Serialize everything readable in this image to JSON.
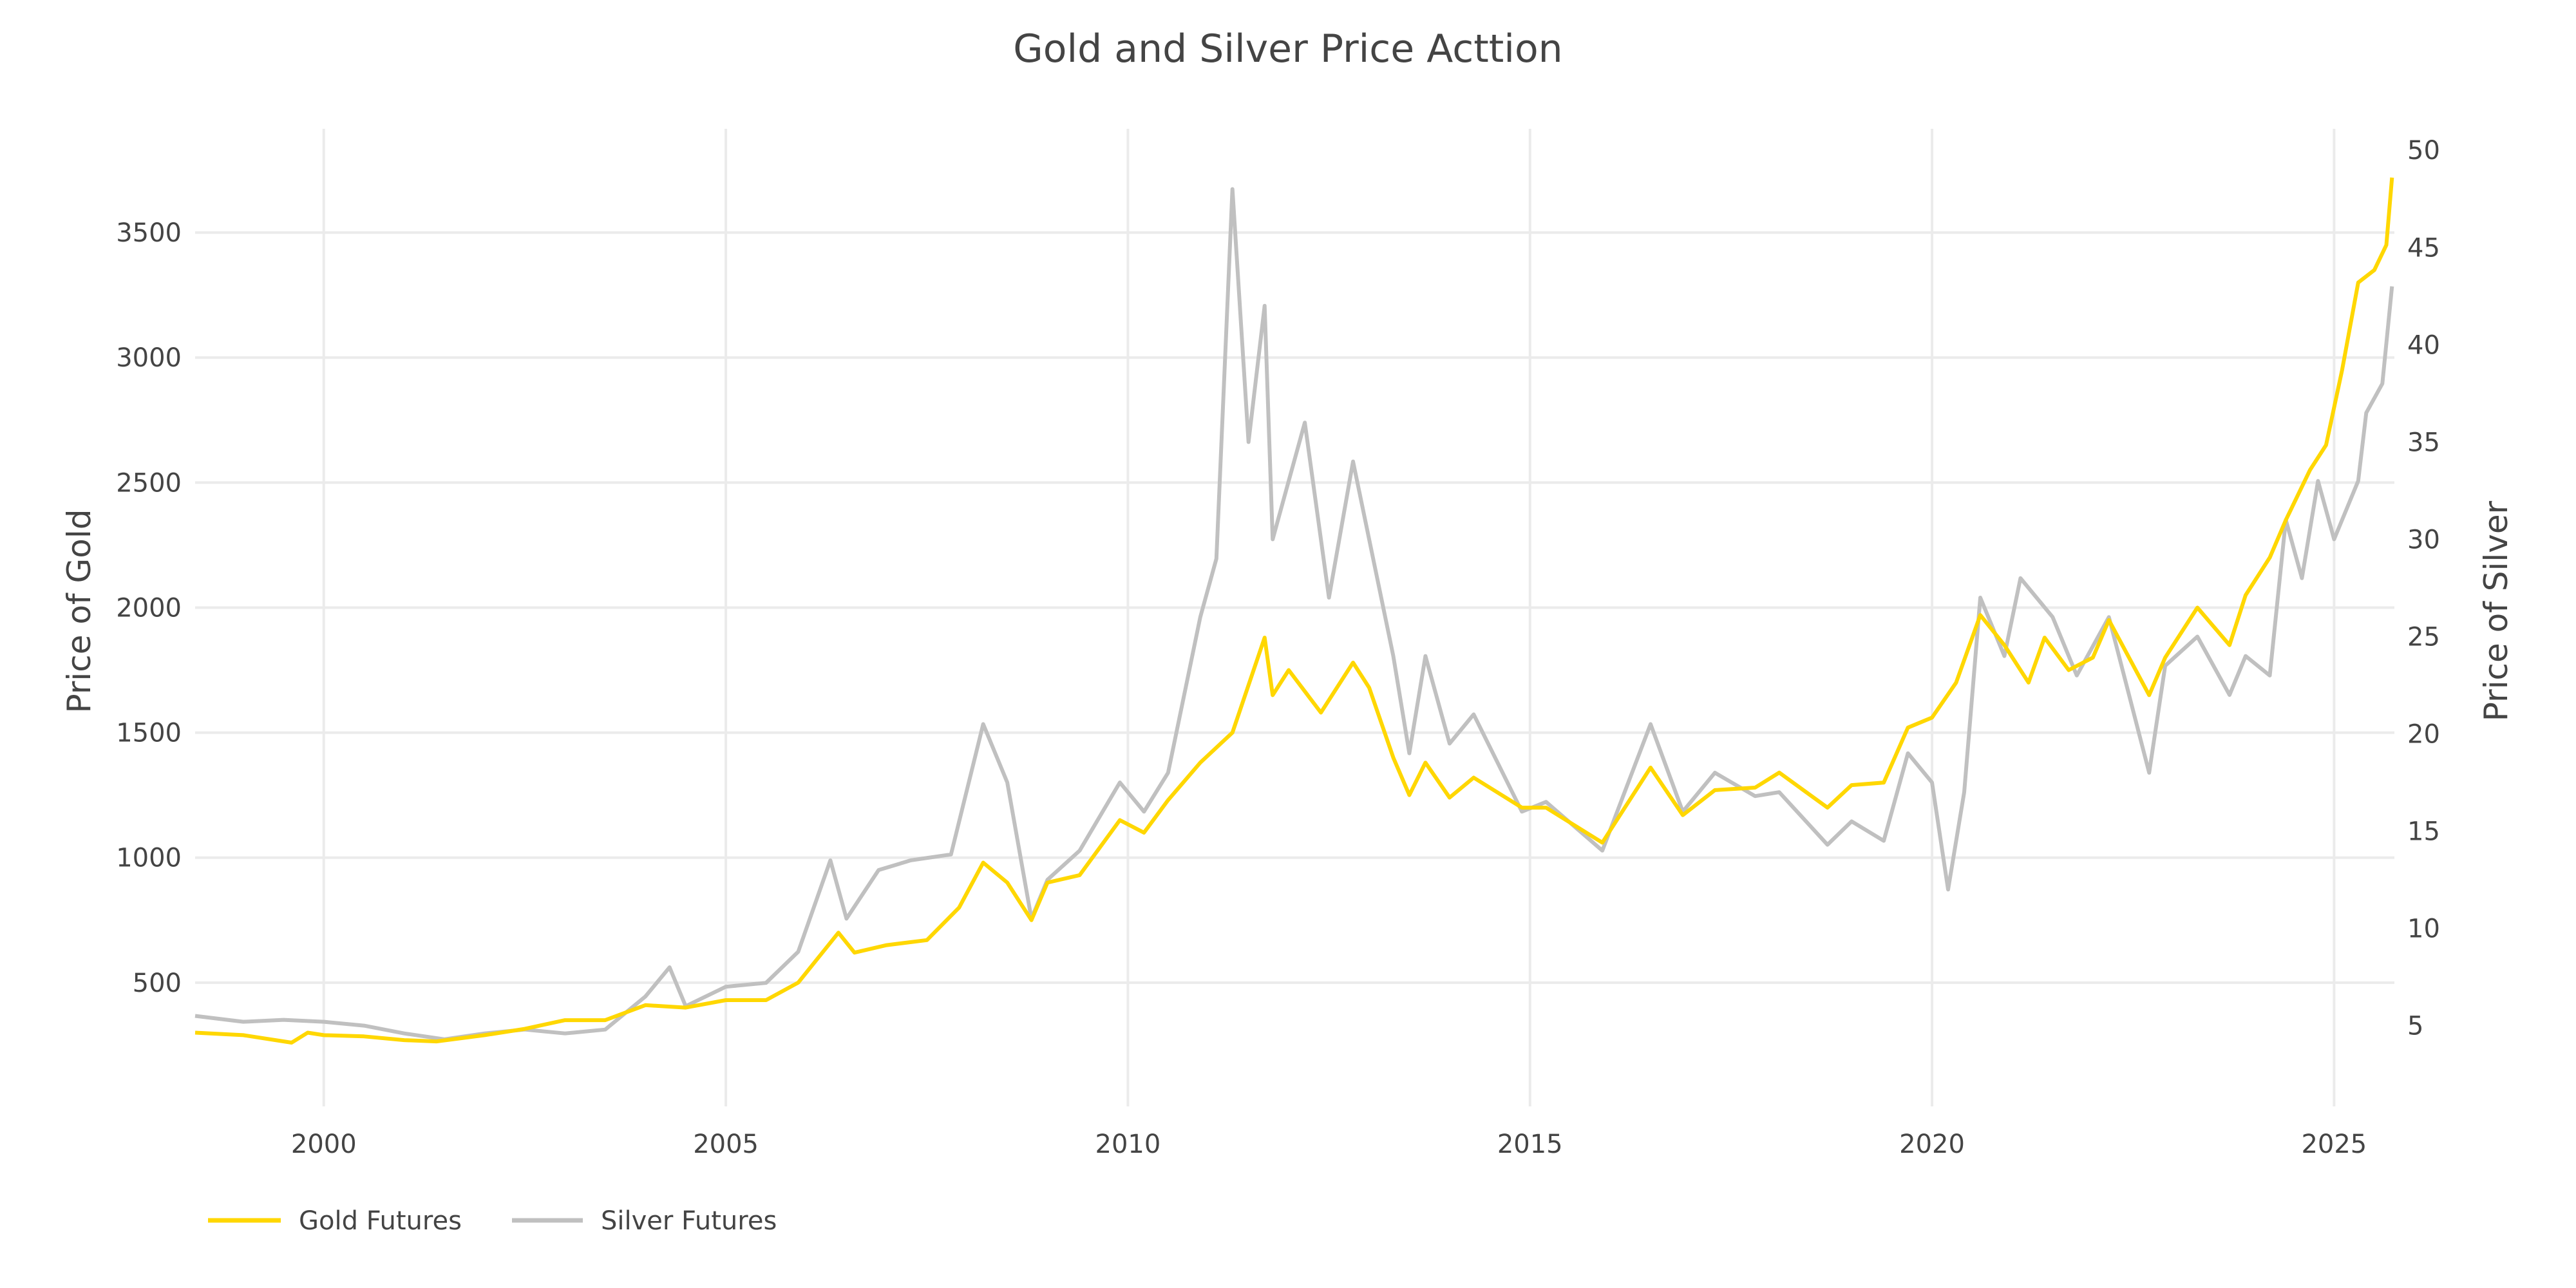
{
  "chart_data": {
    "type": "line",
    "title": "Gold and Silver Price Acttion",
    "xlabel": "",
    "ylabel": "Price of Gold",
    "y2label": "Price of Silver",
    "xlim": [
      1998.4,
      2025.75
    ],
    "ylim": [
      5,
      3915
    ],
    "y2lim": [
      0.85,
      51.1
    ],
    "grid": true,
    "legend_position": "bottom-left",
    "x_ticks": [
      "2000",
      "2005",
      "2010",
      "2015",
      "2020",
      "2025"
    ],
    "y_ticks": [
      "500",
      "1000",
      "1500",
      "2000",
      "2500",
      "3000",
      "3500"
    ],
    "y2_ticks": [
      "5",
      "10",
      "15",
      "20",
      "25",
      "30",
      "35",
      "40",
      "45",
      "50"
    ],
    "series": [
      {
        "name": "Gold Futures",
        "axis": "left",
        "color": "#FFD700",
        "x": [
          1998.4,
          1999,
          1999.6,
          1999.8,
          2000,
          2000.5,
          2001,
          2001.4,
          2002,
          2002.5,
          2003,
          2003.5,
          2004,
          2004.5,
          2005,
          2005.5,
          2005.9,
          2006.4,
          2006.6,
          2007,
          2007.5,
          2007.9,
          2008.2,
          2008.5,
          2008.8,
          2009,
          2009.4,
          2009.9,
          2010.2,
          2010.5,
          2010.9,
          2011.3,
          2011.7,
          2011.8,
          2012.0,
          2012.4,
          2012.8,
          2013.0,
          2013.3,
          2013.5,
          2013.7,
          2014.0,
          2014.3,
          2014.9,
          2015.2,
          2015.9,
          2016.5,
          2016.9,
          2017.3,
          2017.8,
          2018.1,
          2018.7,
          2019.0,
          2019.4,
          2019.7,
          2020.0,
          2020.3,
          2020.6,
          2020.9,
          2021.2,
          2021.4,
          2021.7,
          2022.0,
          2022.2,
          2022.7,
          2022.9,
          2023.3,
          2023.7,
          2023.9,
          2024.2,
          2024.4,
          2024.7,
          2024.9,
          2025.1,
          2025.3,
          2025.5,
          2025.65,
          2025.72
        ],
        "values": [
          300,
          290,
          260,
          300,
          290,
          285,
          270,
          265,
          290,
          315,
          350,
          350,
          410,
          400,
          430,
          430,
          500,
          700,
          620,
          650,
          670,
          800,
          980,
          900,
          750,
          900,
          930,
          1150,
          1100,
          1230,
          1380,
          1500,
          1880,
          1650,
          1750,
          1580,
          1780,
          1680,
          1400,
          1250,
          1380,
          1240,
          1320,
          1200,
          1200,
          1060,
          1360,
          1170,
          1270,
          1280,
          1340,
          1200,
          1290,
          1300,
          1520,
          1560,
          1700,
          1970,
          1850,
          1700,
          1880,
          1750,
          1800,
          1950,
          1650,
          1800,
          2000,
          1850,
          2050,
          2200,
          2350,
          2550,
          2650,
          2950,
          3300,
          3350,
          3450,
          3720
        ]
      },
      {
        "name": "Silver Futures",
        "axis": "right",
        "color": "#C0C0C0",
        "x": [
          1998.4,
          1999,
          1999.5,
          2000,
          2000.5,
          2001,
          2001.5,
          2002,
          2002.5,
          2003,
          2003.5,
          2004,
          2004.3,
          2004.5,
          2005,
          2005.5,
          2005.9,
          2006.3,
          2006.5,
          2006.9,
          2007.3,
          2007.8,
          2008.2,
          2008.5,
          2008.8,
          2009,
          2009.4,
          2009.9,
          2010.2,
          2010.5,
          2010.9,
          2011.1,
          2011.3,
          2011.5,
          2011.7,
          2011.8,
          2012.0,
          2012.2,
          2012.5,
          2012.8,
          2013.0,
          2013.3,
          2013.5,
          2013.7,
          2014.0,
          2014.3,
          2014.9,
          2015.2,
          2015.9,
          2016.5,
          2016.9,
          2017.3,
          2017.8,
          2018.1,
          2018.7,
          2019.0,
          2019.4,
          2019.7,
          2020.0,
          2020.2,
          2020.4,
          2020.6,
          2020.9,
          2021.1,
          2021.5,
          2021.8,
          2022.2,
          2022.7,
          2022.9,
          2023.3,
          2023.7,
          2023.9,
          2024.2,
          2024.4,
          2024.6,
          2024.8,
          2025.0,
          2025.3,
          2025.4,
          2025.6,
          2025.72
        ],
        "values": [
          5.5,
          5.2,
          5.3,
          5.2,
          5.0,
          4.6,
          4.3,
          4.6,
          4.8,
          4.6,
          4.8,
          6.5,
          8.0,
          6.0,
          7.0,
          7.2,
          8.8,
          13.5,
          10.5,
          13.0,
          13.5,
          13.8,
          20.5,
          17.5,
          10.5,
          12.5,
          14,
          17.5,
          16,
          18,
          26,
          29,
          48,
          35,
          42,
          30,
          33,
          36,
          27,
          34,
          30,
          24,
          19,
          24,
          19.5,
          21,
          16,
          16.5,
          14,
          20.5,
          16,
          18,
          16.8,
          17,
          14.3,
          15.5,
          14.5,
          19,
          17.5,
          12,
          17,
          27,
          24,
          28,
          26,
          23,
          26,
          18,
          23.5,
          25,
          22,
          24,
          23,
          31,
          28,
          33,
          30,
          33,
          36.5,
          38,
          43
        ]
      }
    ]
  }
}
